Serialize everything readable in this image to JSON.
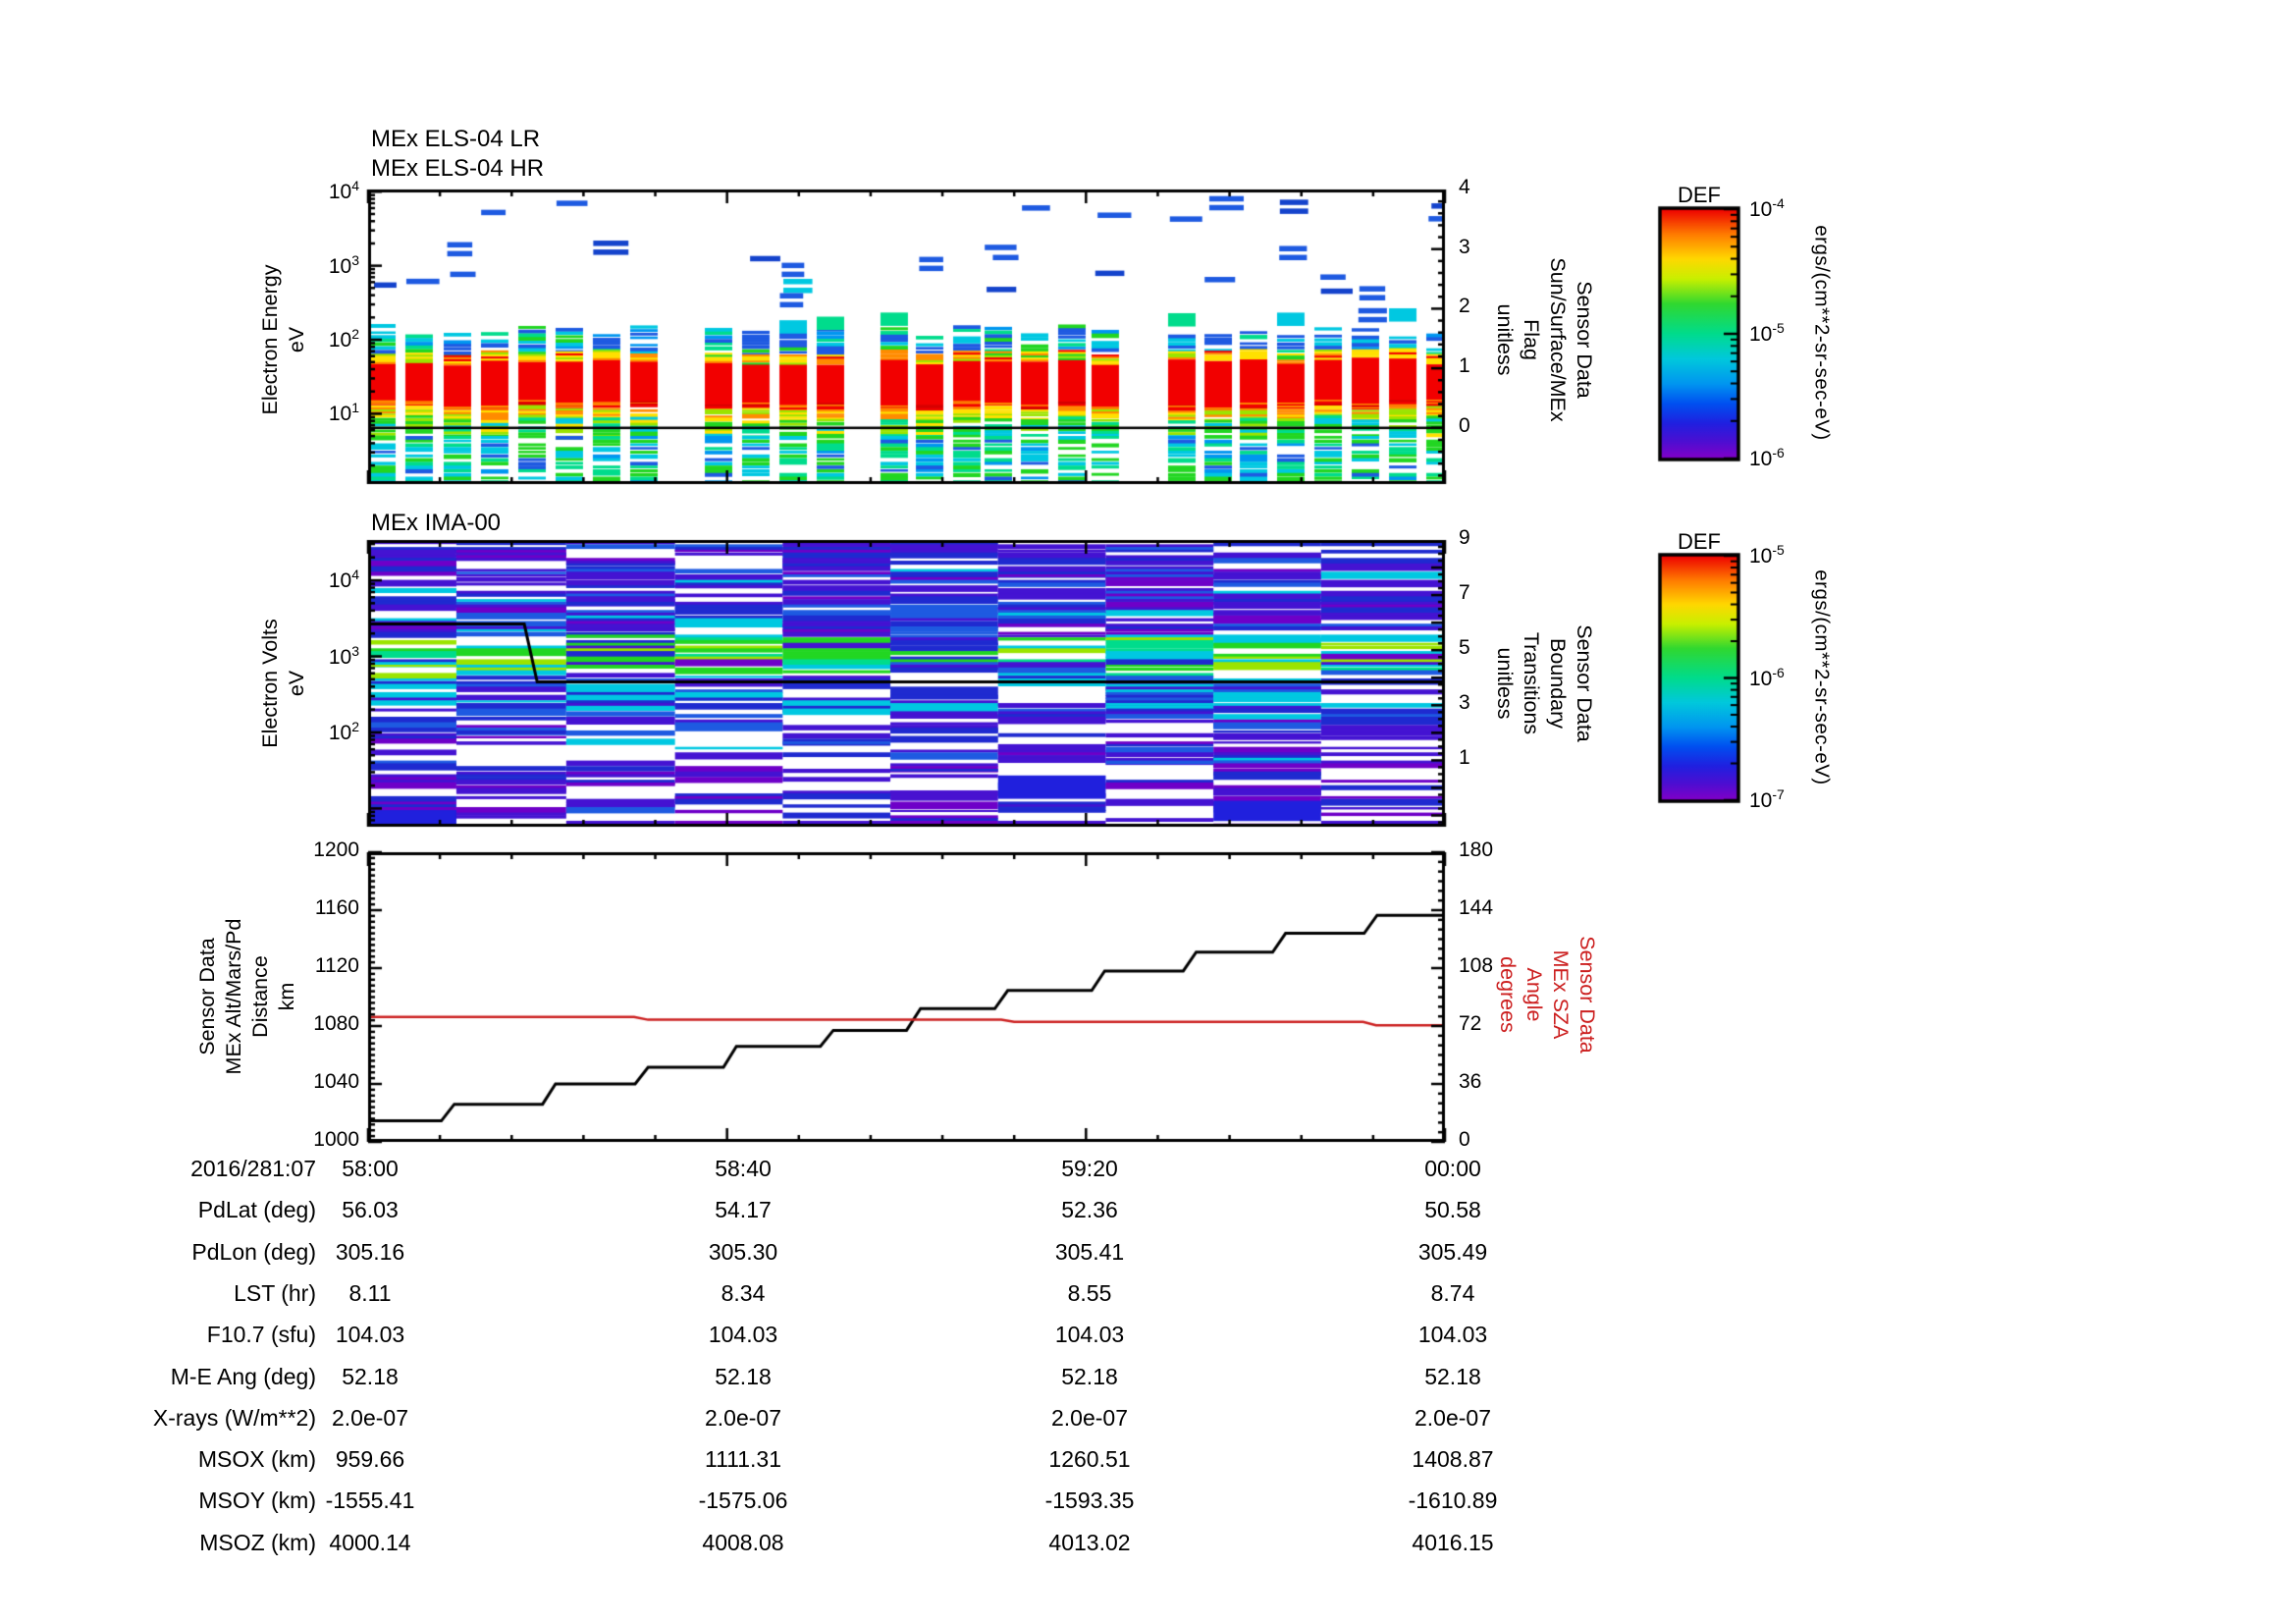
{
  "figure": {
    "bg": "#ffffff",
    "axis_color": "#000000"
  },
  "els": {
    "title1": "MEx ELS-04 LR",
    "title2": "MEx ELS-04 HR",
    "ylabel_lines": [
      "Electron Energy",
      "eV"
    ],
    "ytick_exponents": [
      4,
      3,
      2,
      1
    ],
    "right_label_lines": [
      "Sensor Data",
      "Sun/Surface/MEx",
      "Flag",
      "unitless"
    ],
    "right_ticks": [
      4,
      3,
      2,
      1,
      0
    ]
  },
  "ima": {
    "title": "MEx IMA-00",
    "ylabel_lines": [
      "Electron Volts",
      "eV"
    ],
    "ytick_exponents": [
      4,
      3,
      2
    ],
    "right_label_lines": [
      "Sensor Data",
      "Boundary",
      "Transitions",
      "unitless"
    ],
    "right_ticks": [
      9,
      7,
      5,
      3,
      1
    ]
  },
  "alt": {
    "ylabel_lines": [
      "Sensor Data",
      "MEx Alt/Mars/Pd",
      "Distance",
      "km"
    ],
    "yticks": [
      1200,
      1160,
      1120,
      1080,
      1040,
      1000
    ],
    "right_label_lines": [
      "Sensor Data",
      "MEx SZA",
      "Angle",
      "degrees"
    ],
    "right_ticks": [
      180,
      144,
      108,
      72,
      36,
      0
    ],
    "sza_color": "#cc2020",
    "alt_color": "#000000"
  },
  "colorbars": [
    {
      "title": "DEF",
      "unit": "ergs/(cm**2-sr-sec-eV)",
      "tick_exponents": [
        -4,
        -5,
        -6
      ]
    },
    {
      "title": "DEF",
      "unit": "ergs/(cm**2-sr-sec-eV)",
      "tick_exponents": [
        -5,
        -6,
        -7
      ]
    }
  ],
  "table": {
    "rows": [
      {
        "label": "2016/281:07",
        "values": [
          "58:00",
          "58:40",
          "59:20",
          "00:00"
        ]
      },
      {
        "label": "PdLat (deg)",
        "values": [
          "56.03",
          "54.17",
          "52.36",
          "50.58"
        ]
      },
      {
        "label": "PdLon (deg)",
        "values": [
          "305.16",
          "305.30",
          "305.41",
          "305.49"
        ]
      },
      {
        "label": "LST (hr)",
        "values": [
          "8.11",
          "8.34",
          "8.55",
          "8.74"
        ]
      },
      {
        "label": "F10.7 (sfu)",
        "values": [
          "104.03",
          "104.03",
          "104.03",
          "104.03"
        ]
      },
      {
        "label": "M-E Ang (deg)",
        "values": [
          "52.18",
          "52.18",
          "52.18",
          "52.18"
        ]
      },
      {
        "label": "X-rays (W/m**2)",
        "values": [
          "2.0e-07",
          "2.0e-07",
          "2.0e-07",
          "2.0e-07"
        ]
      },
      {
        "label": "MSOX (km)",
        "values": [
          "959.66",
          "1111.31",
          "1260.51",
          "1408.87"
        ]
      },
      {
        "label": "MSOY (km)",
        "values": [
          "-1555.41",
          "-1575.06",
          "-1593.35",
          "-1610.89"
        ]
      },
      {
        "label": "MSOZ (km)",
        "values": [
          "4000.14",
          "4008.08",
          "4013.02",
          "4016.15"
        ]
      }
    ]
  },
  "chart_data": [
    {
      "type": "heatmap",
      "panel": "top",
      "title": "MEx ELS-04 LR / MEx ELS-04 HR",
      "ylabel": "Electron Energy (eV)",
      "yscale": "log",
      "ylim": [
        1.1,
        10700
      ],
      "x_range": [
        "2016/281:07 58:00",
        "2016/281:08 00:00"
      ],
      "xticks": [
        "58:00",
        "58:40",
        "59:20",
        "00:00"
      ],
      "right_axis": {
        "label": "Sensor Data Sun/Surface/MEx Flag (unitless)",
        "ticks": [
          0,
          1,
          2,
          3,
          4
        ]
      },
      "overlay_series": [
        {
          "name": "Sun/Surface/MEx Flag",
          "value": 0,
          "color": "#000000"
        }
      ],
      "colorbar": {
        "title": "DEF",
        "unit": "ergs/(cm**2-sr-sec-eV)",
        "log_range": [
          1e-06,
          0.0001
        ]
      },
      "structure": {
        "column_fractions": [
          0,
          0.0346,
          0.0702,
          0.1048,
          0.1395,
          0.1741,
          0.2087,
          0.2434,
          0.3127,
          0.3473,
          0.382,
          0.4166,
          0.4758,
          0.5087,
          0.5433,
          0.5725,
          0.6062,
          0.6408,
          0.6718,
          0.7429,
          0.7767,
          0.8095,
          0.8441,
          0.8788,
          0.9134,
          0.9481,
          0.9827
        ],
        "column_width_fraction": 0.0255,
        "bands": [
          {
            "energy_eV": [
              13,
              50
            ],
            "appearance": "saturated red core ~1e-4"
          },
          {
            "energy_eV": [
              50,
              70
            ],
            "appearance": "yellow/orange ~3e-5"
          },
          {
            "energy_eV": [
              8,
              13
            ],
            "appearance": "orange/yellow fringe"
          },
          {
            "energy_eV": [
              70,
              140
            ],
            "appearance": "blue/cyan/green stripes 1e-6..8e-6"
          },
          {
            "energy_eV": [
              1.2,
              8
            ],
            "appearance": "green/cyan/blue stripes"
          },
          {
            "energy_eV": [
              150,
              10000
            ],
            "appearance": "sporadic short blue HR dashes ~1e-6"
          }
        ],
        "data_gaps_fraction": [
          [
            0.269,
            0.313
          ],
          [
            0.442,
            0.476
          ],
          [
            0.697,
            0.743
          ]
        ]
      }
    },
    {
      "type": "heatmap",
      "panel": "middle",
      "title": "MEx IMA-00",
      "ylabel": "Electron Volts (eV)",
      "yscale": "log",
      "ylim": [
        6,
        34000
      ],
      "xticks": [
        "58:00",
        "58:40",
        "59:20",
        "00:00"
      ],
      "right_axis": {
        "label": "Sensor Data Boundary Transitions (unitless)",
        "ticks": [
          1,
          3,
          5,
          7,
          9
        ]
      },
      "overlay_series": [
        {
          "name": "Boundary Transitions",
          "color": "#000000",
          "points_t_value": [
            [
              0,
              5.95
            ],
            [
              0.145,
              5.95
            ],
            [
              0.157,
              3.85
            ],
            [
              1,
              3.85
            ]
          ]
        }
      ],
      "colorbar": {
        "title": "DEF",
        "unit": "ergs/(cm**2-sr-sec-eV)",
        "log_range": [
          1e-07,
          1e-05
        ]
      },
      "structure": {
        "column_edge_fractions": [
          0,
          0.082,
          0.184,
          0.285,
          0.385,
          0.485,
          0.585,
          0.685,
          0.785,
          0.885,
          1
        ],
        "green_band_bias": [
          0.9,
          0.9,
          0.45,
          0.85,
          0.95,
          0.4,
          0.55,
          0.85,
          0.9,
          0.55
        ],
        "description": "full-width horizontal stripe spectra; green/cyan enhancement 500-2000 eV; elsewhere blue/indigo stripes on white"
      }
    },
    {
      "type": "line",
      "panel": "bottom",
      "left_axis": {
        "label": "Sensor Data MEx Alt/Mars/Pd Distance (km)",
        "ylim": [
          1000,
          1200
        ],
        "ticks": [
          1000,
          1040,
          1080,
          1120,
          1160,
          1200
        ]
      },
      "right_axis": {
        "label": "Sensor Data MEx SZA Angle (degrees)",
        "ylim": [
          0,
          180
        ],
        "ticks": [
          0,
          36,
          72,
          108,
          144,
          180
        ]
      },
      "xticks": [
        "58:00",
        "58:40",
        "59:20",
        "00:00"
      ],
      "series": [
        {
          "name": "MEx Alt/Mars/Pd Distance",
          "unit": "km",
          "color": "#000000",
          "points": [
            [
              0,
              1014.5
            ],
            [
              0.068,
              1014.5
            ],
            [
              0.08,
              1026
            ],
            [
              0.162,
              1026
            ],
            [
              0.174,
              1040
            ],
            [
              0.248,
              1040
            ],
            [
              0.26,
              1051.5
            ],
            [
              0.33,
              1051.5
            ],
            [
              0.342,
              1066
            ],
            [
              0.42,
              1066
            ],
            [
              0.432,
              1077
            ],
            [
              0.5,
              1077
            ],
            [
              0.513,
              1092
            ],
            [
              0.582,
              1092
            ],
            [
              0.594,
              1104.5
            ],
            [
              0.672,
              1104.5
            ],
            [
              0.684,
              1118
            ],
            [
              0.757,
              1118
            ],
            [
              0.769,
              1131
            ],
            [
              0.84,
              1131
            ],
            [
              0.852,
              1144
            ],
            [
              0.925,
              1144
            ],
            [
              0.937,
              1156.5
            ],
            [
              1,
              1156.5
            ]
          ]
        },
        {
          "name": "MEx SZA Angle",
          "unit": "degrees",
          "color": "#cc2020",
          "points": [
            [
              0,
              77.6
            ],
            [
              0.247,
              77.6
            ],
            [
              0.26,
              75.9
            ],
            [
              0.588,
              75.9
            ],
            [
              0.6,
              74.6
            ],
            [
              0.924,
              74.6
            ],
            [
              0.936,
              72.5
            ],
            [
              1,
              72.5
            ]
          ]
        }
      ]
    }
  ]
}
